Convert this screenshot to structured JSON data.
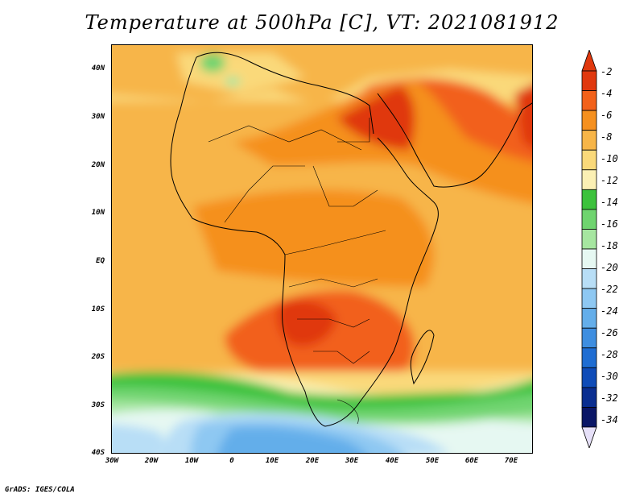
{
  "title": "Temperature at 500hPa [C], VT: 2021081912",
  "credit": "GrADS: IGES/COLA",
  "lat_labels": [
    "40N",
    "30N",
    "20N",
    "10N",
    "EQ",
    "10S",
    "20S",
    "30S",
    "40S"
  ],
  "lon_labels": [
    "30W",
    "20W",
    "10W",
    "0",
    "10E",
    "20E",
    "30E",
    "40E",
    "50E",
    "60E",
    "70E"
  ],
  "colorbar": {
    "levels": [
      "-2",
      "-4",
      "-6",
      "-8",
      "-10",
      "-12",
      "-14",
      "-16",
      "-18",
      "-20",
      "-22",
      "-24",
      "-26",
      "-28",
      "-30",
      "-32",
      "-34"
    ],
    "colors": [
      "#e0380e",
      "#f2611a",
      "#f5901f",
      "#f7b548",
      "#fad97a",
      "#fbf0b4",
      "#3cc23c",
      "#6fd46f",
      "#a6e6a0",
      "#e6f8f2",
      "#b8def6",
      "#8ec8f2",
      "#64aeea",
      "#3e8ee0",
      "#1f6dd2",
      "#0f4cb8",
      "#0a2e90",
      "#0a1666"
    ],
    "top_arrow_color": "#e0380e",
    "bottom_arrow_color": "#e6e0f8"
  }
}
